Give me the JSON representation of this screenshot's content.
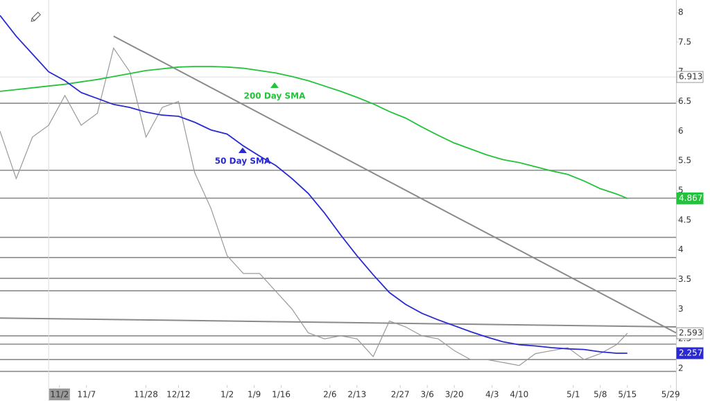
{
  "chart_data": {
    "type": "line",
    "xlim": [
      -11,
      114
    ],
    "ylim": [
      1.79,
      8.21
    ],
    "xticks": [
      {
        "value": 0,
        "label": "11/2"
      },
      {
        "value": 5,
        "label": "11/7"
      },
      {
        "value": 16,
        "label": "11/28"
      },
      {
        "value": 22,
        "label": "12/12"
      },
      {
        "value": 31,
        "label": "1/2"
      },
      {
        "value": 36,
        "label": "1/9"
      },
      {
        "value": 41,
        "label": "1/16"
      },
      {
        "value": 50,
        "label": "2/6"
      },
      {
        "value": 55,
        "label": "2/13"
      },
      {
        "value": 63,
        "label": "2/27"
      },
      {
        "value": 68,
        "label": "3/6"
      },
      {
        "value": 73,
        "label": "3/20"
      },
      {
        "value": 80,
        "label": "4/3"
      },
      {
        "value": 85,
        "label": "4/10"
      },
      {
        "value": 95,
        "label": "5/1"
      },
      {
        "value": 100,
        "label": "5/8"
      },
      {
        "value": 105,
        "label": "5/15"
      },
      {
        "value": 113,
        "label": "5/29"
      }
    ],
    "yticks": [
      2,
      2.5,
      3,
      3.5,
      4,
      4.5,
      5,
      5.5,
      6,
      6.5,
      7,
      7.5,
      8
    ],
    "x": [
      -11,
      -8,
      -5,
      -2,
      1,
      4,
      7,
      10,
      13,
      16,
      19,
      22,
      25,
      28,
      31,
      34,
      37,
      40,
      43,
      46,
      49,
      52,
      55,
      58,
      61,
      64,
      67,
      70,
      73,
      76,
      79,
      82,
      85,
      88,
      91,
      94,
      97,
      100,
      103,
      105
    ],
    "series": [
      {
        "color": "#999999",
        "tag_style": "outline",
        "values": [
          6.0,
          5.2,
          5.9,
          6.1,
          6.6,
          6.1,
          6.3,
          7.4,
          7.0,
          5.9,
          6.4,
          6.5,
          5.3,
          4.7,
          3.9,
          3.6,
          3.6,
          3.3,
          3.0,
          2.6,
          2.5,
          2.55,
          2.5,
          2.2,
          2.8,
          2.7,
          2.55,
          2.5,
          2.3,
          2.15,
          2.15,
          2.1,
          2.05,
          2.25,
          2.3,
          2.35,
          2.15,
          2.25,
          2.4,
          2.593
        ]
      },
      {
        "name": "200 Day SMA",
        "color": "#22c33a",
        "tag_style": "fill",
        "values": [
          6.67,
          6.7,
          6.73,
          6.76,
          6.79,
          6.83,
          6.87,
          6.92,
          6.97,
          7.02,
          7.05,
          7.08,
          7.09,
          7.09,
          7.08,
          7.06,
          7.02,
          6.98,
          6.92,
          6.85,
          6.76,
          6.67,
          6.57,
          6.46,
          6.33,
          6.22,
          6.07,
          5.93,
          5.8,
          5.7,
          5.6,
          5.52,
          5.47,
          5.4,
          5.33,
          5.27,
          5.16,
          5.03,
          4.94,
          4.867
        ]
      },
      {
        "name": "50 Day SMA",
        "color": "#2a2ad0",
        "tag_style": "fill",
        "values": [
          7.95,
          7.6,
          7.3,
          7.0,
          6.85,
          6.65,
          6.55,
          6.45,
          6.4,
          6.32,
          6.27,
          6.25,
          6.15,
          6.02,
          5.95,
          5.75,
          5.58,
          5.42,
          5.2,
          4.95,
          4.62,
          4.25,
          3.9,
          3.58,
          3.28,
          3.08,
          2.93,
          2.82,
          2.72,
          2.62,
          2.53,
          2.45,
          2.4,
          2.38,
          2.35,
          2.33,
          2.32,
          2.28,
          2.257,
          2.257
        ]
      }
    ],
    "hlines": [
      6.47,
      5.34,
      4.87,
      4.21,
      3.87,
      3.52,
      3.31,
      2.55,
      2.41,
      2.15,
      1.95
    ],
    "trendlines": [
      {
        "x": [
          10,
          114
        ],
        "y": [
          7.6,
          2.6
        ]
      },
      {
        "x": [
          -11,
          114
        ],
        "y": [
          2.85,
          2.7
        ]
      }
    ],
    "crosshair": {
      "x": -2,
      "y": 6.913
    }
  }
}
